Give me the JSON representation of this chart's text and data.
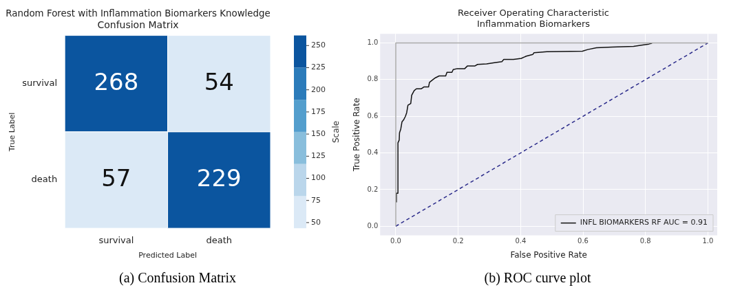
{
  "chart_data": [
    {
      "type": "heatmap",
      "title": "Random Forest with Inflammation Biomarkers Knowledge\nConfusion Matrix",
      "xlabel": "Predicted Label",
      "ylabel": "True Label",
      "clabel": "Scale",
      "categories": [
        "survival",
        "death"
      ],
      "y_categories": [
        "survival",
        "death"
      ],
      "cells": [
        [
          268,
          54
        ],
        [
          57,
          229
        ]
      ],
      "data_labels": true,
      "clim": [
        43.6,
        261.4
      ],
      "cticks": [
        50,
        75,
        100,
        125,
        150,
        175,
        200,
        225,
        250
      ],
      "annotations": [
        "(a) Confusion Matrix"
      ]
    },
    {
      "type": "line",
      "title": "Receiver Operating Characteristic\nInflammation Biomarkers",
      "xlabel": "False Positive Rate",
      "ylabel": "True Positive Rate",
      "xlim": [
        -0.05,
        1.03
      ],
      "ylim": [
        -0.05,
        1.05
      ],
      "xticks": [
        {
          "value": 0,
          "label": "0.0"
        },
        0.2,
        0.4,
        0.6,
        0.8,
        {
          "value": 1,
          "label": "1.0"
        }
      ],
      "yticks": [
        {
          "value": 0,
          "label": "0.0"
        },
        0.2,
        0.4,
        0.6,
        0.8,
        {
          "value": 1,
          "label": "1.0"
        }
      ],
      "grid": true,
      "legend": "bottom right",
      "marker": "none",
      "series": [
        {
          "color": "#aaaaaa",
          "x": [
            0,
            0,
            1
          ],
          "values": [
            0,
            1,
            1
          ]
        },
        {
          "color": "#2a2a8a",
          "line_style": "dashed",
          "x": [
            0,
            1
          ],
          "values": [
            0,
            1
          ]
        },
        {
          "name": "INFL BIOMARKERS RF AUC = 0.91",
          "color": "#111111",
          "x": [
            0.002,
            0.002,
            0.007,
            0.007,
            0.011,
            0.012,
            0.016,
            0.02,
            0.025,
            0.031,
            0.035,
            0.039,
            0.048,
            0.051,
            0.059,
            0.066,
            0.082,
            0.09,
            0.105,
            0.108,
            0.119,
            0.127,
            0.139,
            0.16,
            0.164,
            0.18,
            0.184,
            0.197,
            0.221,
            0.23,
            0.254,
            0.262,
            0.291,
            0.316,
            0.34,
            0.346,
            0.377,
            0.402,
            0.418,
            0.439,
            0.443,
            0.484,
            0.598,
            0.615,
            0.643,
            0.693,
            0.762,
            0.787,
            0.811,
            0.82,
            0.82
          ],
          "values": [
            0.13,
            0.18,
            0.18,
            0.455,
            0.47,
            0.51,
            0.53,
            0.57,
            0.58,
            0.6,
            0.62,
            0.66,
            0.67,
            0.715,
            0.74,
            0.75,
            0.75,
            0.76,
            0.76,
            0.785,
            0.8,
            0.81,
            0.82,
            0.82,
            0.84,
            0.84,
            0.855,
            0.86,
            0.86,
            0.875,
            0.875,
            0.883,
            0.886,
            0.892,
            0.898,
            0.91,
            0.91,
            0.916,
            0.928,
            0.937,
            0.947,
            0.952,
            0.955,
            0.964,
            0.974,
            0.978,
            0.981,
            0.988,
            0.994,
            0.998,
            1.0
          ]
        }
      ],
      "annotations": [
        "(b) ROC curve plot"
      ]
    }
  ]
}
